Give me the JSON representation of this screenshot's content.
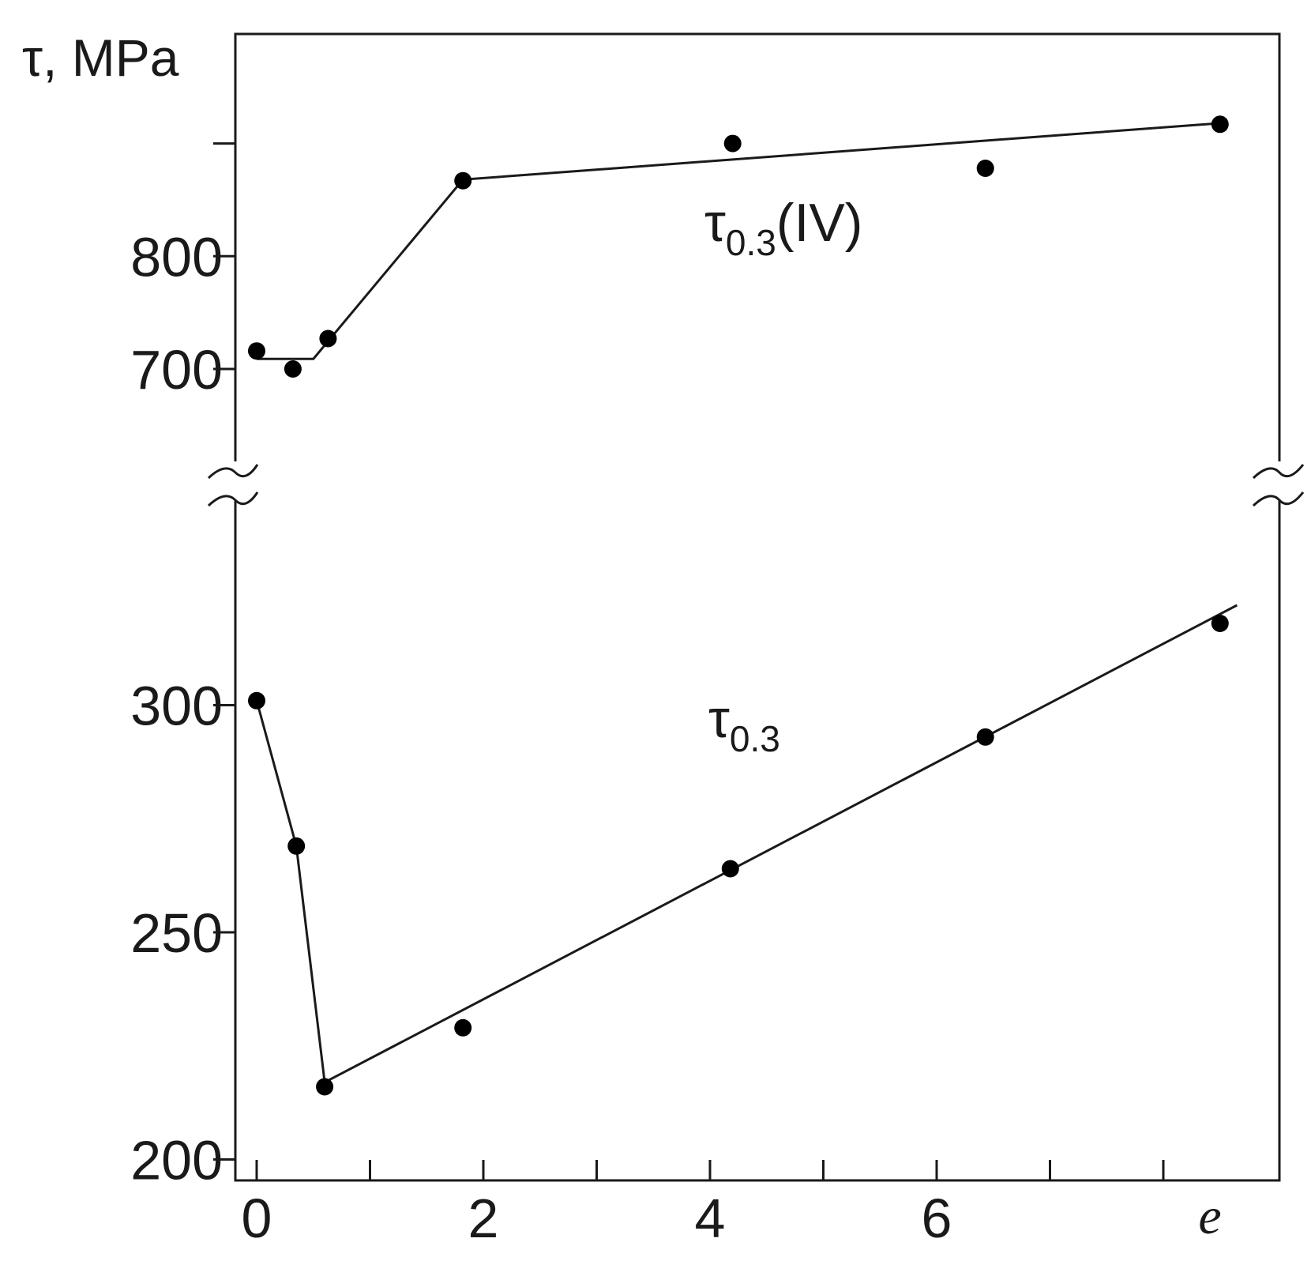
{
  "chart_data": {
    "type": "line",
    "ylabel": "τ, MPa",
    "xlabel": "e",
    "x_ticks": [
      0,
      2,
      4,
      6
    ],
    "x_range": [
      -0.2,
      9.0
    ],
    "y_axis_broken": true,
    "y_panels": {
      "upper": {
        "ticks": [
          700,
          800
        ],
        "range": [
          600,
          900
        ]
      },
      "lower": {
        "ticks": [
          200,
          250,
          300
        ],
        "range": [
          195,
          350
        ]
      }
    },
    "grid": false,
    "series": [
      {
        "name": "τ0.3(IV)",
        "label_main": "τ",
        "label_sub": "0.3",
        "label_suffix": "(IV)",
        "panel": "upper",
        "points": [
          {
            "x": 0.0,
            "y": 716
          },
          {
            "x": 0.32,
            "y": 700
          },
          {
            "x": 0.63,
            "y": 727
          },
          {
            "x": 1.82,
            "y": 867
          },
          {
            "x": 4.2,
            "y": 900
          },
          {
            "x": 6.43,
            "y": 878
          },
          {
            "x": 8.5,
            "y": 917
          }
        ],
        "fit_line": [
          {
            "x": 0.0,
            "y": 709
          },
          {
            "x": 0.5,
            "y": 709
          },
          {
            "x": 1.82,
            "y": 868
          },
          {
            "x": 8.5,
            "y": 918
          }
        ]
      },
      {
        "name": "τ0.3",
        "label_main": "τ",
        "label_sub": "0.3",
        "label_suffix": "",
        "panel": "lower",
        "points": [
          {
            "x": 0.0,
            "y": 301
          },
          {
            "x": 0.35,
            "y": 269
          },
          {
            "x": 0.6,
            "y": 216
          },
          {
            "x": 1.82,
            "y": 229
          },
          {
            "x": 4.18,
            "y": 264
          },
          {
            "x": 6.43,
            "y": 293
          },
          {
            "x": 8.5,
            "y": 318
          }
        ],
        "fit_line": [
          {
            "x": 0.0,
            "y": 301
          },
          {
            "x": 0.35,
            "y": 269
          },
          {
            "x": 0.6,
            "y": 217
          },
          {
            "x": 8.65,
            "y": 322
          }
        ]
      }
    ]
  }
}
